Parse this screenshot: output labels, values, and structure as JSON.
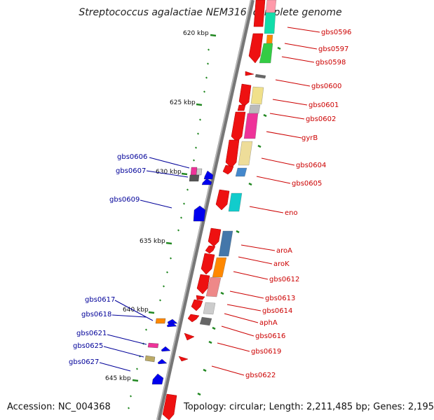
{
  "title": "Streptococcus agalactiae NEM316, complete genome",
  "footer": {
    "accession": "Accession: NC_004368",
    "topology": "Topology: circular; Length: 2,211,485 bp; Genes: 2,195"
  },
  "ticks": [
    "620 kbp",
    "625 kbp",
    "630 kbp",
    "635 kbp",
    "640 kbp",
    "645 kbp"
  ],
  "colors": {
    "forward_label": "#cc0000",
    "reverse_label": "#000099",
    "backbone": "#888888",
    "tick": "#228822"
  },
  "forward_genes": [
    "gbs0596",
    "gbs0597",
    "gbs0598",
    "gbs0600",
    "gbs0601",
    "gbs0602",
    "gyrB",
    "gbs0604",
    "gbs0605",
    "eno",
    "aroA",
    "aroK",
    "gbs0612",
    "gbs0613",
    "gbs0614",
    "aphA",
    "gbs0616",
    "gbs0619",
    "gbs0622"
  ],
  "reverse_genes": [
    "gbs0606",
    "gbs0607",
    "gbs0609",
    "gbs0617",
    "gbs0618",
    "gbs0621",
    "gbs0625",
    "gbs0627"
  ]
}
